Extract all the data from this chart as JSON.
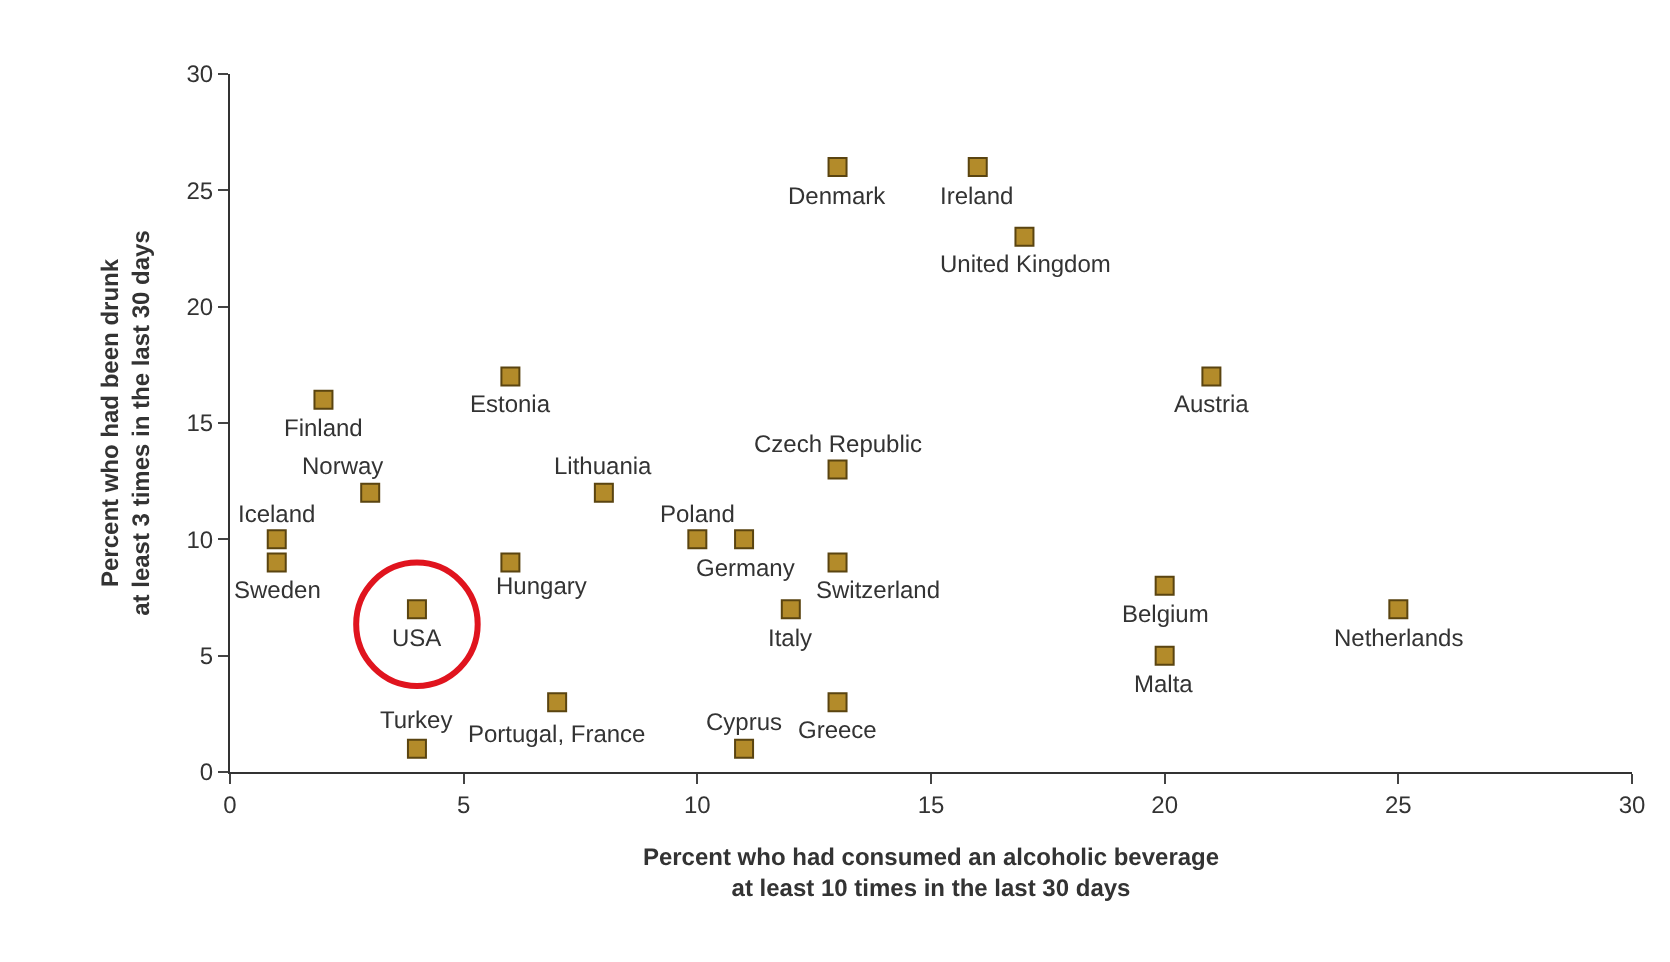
{
  "chart_data": {
    "type": "scatter",
    "xlabel": "Percent who had consumed an alcoholic beverage at least 10 times in the last 30 days",
    "ylabel": "Percent who had been drunk at least 3 times in the last 30 days",
    "x": [
      13,
      16,
      17,
      21,
      2,
      6,
      3,
      8,
      13,
      1,
      1,
      10,
      11,
      13,
      6,
      4,
      12,
      20,
      20,
      25,
      4,
      7,
      11,
      13
    ],
    "series": [
      {
        "color": "#b38b2a",
        "values": [
          26,
          26,
          23,
          17,
          16,
          17,
          12,
          12,
          13,
          10,
          9,
          10,
          10,
          9,
          9,
          7,
          7,
          8,
          5,
          7,
          1,
          3,
          1,
          3
        ]
      }
    ],
    "marker": "square",
    "xlim": [
      0,
      30
    ],
    "ylim": [
      0,
      30
    ],
    "xticks": [
      0,
      5,
      10,
      15,
      20,
      25,
      30
    ],
    "yticks": [
      0,
      5,
      10,
      15,
      20,
      25,
      30
    ],
    "annotations": [
      {
        "text": "Denmark",
        "x": 13,
        "y": 26
      },
      {
        "text": "Ireland",
        "x": 16,
        "y": 26
      },
      {
        "text": "United Kingdom",
        "x": 17,
        "y": 23
      },
      {
        "text": "Austria",
        "x": 21,
        "y": 17
      },
      {
        "text": "Finland",
        "x": 2,
        "y": 16
      },
      {
        "text": "Estonia",
        "x": 6,
        "y": 17
      },
      {
        "text": "Norway",
        "x": 3,
        "y": 12
      },
      {
        "text": "Lithuania",
        "x": 8,
        "y": 12
      },
      {
        "text": "Czech Republic",
        "x": 13,
        "y": 13
      },
      {
        "text": "Iceland",
        "x": 1,
        "y": 10
      },
      {
        "text": "Sweden",
        "x": 1,
        "y": 9
      },
      {
        "text": "Poland",
        "x": 10,
        "y": 10
      },
      {
        "text": "Germany",
        "x": 11,
        "y": 10
      },
      {
        "text": "Switzerland",
        "x": 13,
        "y": 9
      },
      {
        "text": "Hungary",
        "x": 6,
        "y": 9
      },
      {
        "text": "USA",
        "x": 4,
        "y": 7
      },
      {
        "text": "Italy",
        "x": 12,
        "y": 7
      },
      {
        "text": "Belgium",
        "x": 20,
        "y": 8
      },
      {
        "text": "Malta",
        "x": 20,
        "y": 5
      },
      {
        "text": "Netherlands",
        "x": 25,
        "y": 7
      },
      {
        "text": "Turkey",
        "x": 4,
        "y": 1
      },
      {
        "text": "Portugal, France",
        "x": 7,
        "y": 3
      },
      {
        "text": "Cyprus",
        "x": 11,
        "y": 1
      },
      {
        "text": "Greece",
        "x": 13,
        "y": 3
      }
    ]
  }
}
